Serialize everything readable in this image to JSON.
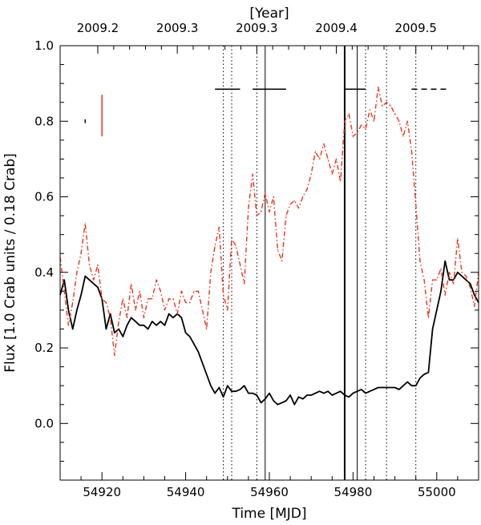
{
  "chart_data": {
    "type": "line",
    "xlabel": "Time [MJD]",
    "ylabel": "Flux [1.0 Crab units / 0.18 Crab]",
    "top_axis_title": "[Year]",
    "xlim": [
      54910,
      55010
    ],
    "ylim": [
      -0.15,
      1.0
    ],
    "x_ticks": [
      54920,
      54940,
      54960,
      54980,
      55000
    ],
    "x_tick_labels": [
      "54920",
      "54940",
      "54960",
      "54980",
      "55000"
    ],
    "y_ticks": [
      0.0,
      0.2,
      0.4,
      0.6,
      0.8,
      1.0
    ],
    "y_tick_labels": [
      "0.0",
      "0.2",
      "0.4",
      "0.6",
      "0.8",
      "1.0"
    ],
    "top_ticks": [
      {
        "x": 54919,
        "label": "2009.2"
      },
      {
        "x": 54938,
        "label": "2009.3"
      },
      {
        "x": 54957,
        "label": "2009.3"
      },
      {
        "x": 54976,
        "label": "2009.4"
      },
      {
        "x": 54995,
        "label": "2009.5"
      }
    ],
    "grid": false,
    "series": [
      {
        "color": "#000000",
        "style": "solid",
        "x": [
          54910,
          54911,
          54912,
          54913,
          54914,
          54915,
          54916,
          54917,
          54918,
          54919,
          54920,
          54921,
          54922,
          54923,
          54924,
          54925,
          54926,
          54927,
          54928,
          54929,
          54930,
          54931,
          54932,
          54933,
          54934,
          54935,
          54936,
          54937,
          54938,
          54939,
          54940,
          54941,
          54942,
          54943,
          54944,
          54945,
          54946,
          54947,
          54948,
          54949,
          54950,
          54951,
          54952,
          54953,
          54954,
          54955,
          54956,
          54957,
          54958,
          54959,
          54960,
          54961,
          54962,
          54963,
          54964,
          54965,
          54966,
          54967,
          54968,
          54969,
          54970,
          54971,
          54972,
          54973,
          54974,
          54975,
          54976,
          54977,
          54978,
          54979,
          54980,
          54981,
          54982,
          54983,
          54984,
          54985,
          54986,
          54987,
          54988,
          54989,
          54990,
          54991,
          54992,
          54993,
          54994,
          54995,
          54996,
          54997,
          54998,
          54999,
          55000,
          55001,
          55002,
          55003,
          55004,
          55005,
          55006,
          55007,
          55008,
          55009,
          55010
        ],
        "y": [
          0.34,
          0.38,
          0.3,
          0.25,
          0.3,
          0.34,
          0.39,
          0.38,
          0.37,
          0.36,
          0.33,
          0.25,
          0.29,
          0.24,
          0.25,
          0.23,
          0.26,
          0.28,
          0.27,
          0.26,
          0.26,
          0.25,
          0.27,
          0.26,
          0.27,
          0.26,
          0.29,
          0.28,
          0.29,
          0.28,
          0.24,
          0.23,
          0.21,
          0.19,
          0.16,
          0.13,
          0.1,
          0.08,
          0.095,
          0.07,
          0.1,
          0.085,
          0.085,
          0.09,
          0.1,
          0.08,
          0.08,
          0.075,
          0.055,
          0.065,
          0.08,
          0.06,
          0.05,
          0.055,
          0.06,
          0.075,
          0.05,
          0.07,
          0.065,
          0.075,
          0.075,
          0.08,
          0.085,
          0.08,
          0.085,
          0.075,
          0.08,
          0.085,
          0.075,
          0.07,
          0.08,
          0.085,
          0.09,
          0.08,
          0.085,
          0.09,
          0.095,
          0.095,
          0.095,
          0.095,
          0.095,
          0.09,
          0.1,
          0.11,
          0.1,
          0.1,
          0.12,
          0.13,
          0.135,
          0.25,
          0.3,
          0.35,
          0.43,
          0.38,
          0.38,
          0.4,
          0.39,
          0.38,
          0.37,
          0.34,
          0.32
        ]
      },
      {
        "color": "#e8351e",
        "style": "dashdot",
        "x": [
          54910,
          54911,
          54912,
          54913,
          54914,
          54915,
          54916,
          54917,
          54918,
          54919,
          54920,
          54921,
          54922,
          54923,
          54924,
          54925,
          54926,
          54927,
          54928,
          54929,
          54930,
          54931,
          54932,
          54933,
          54934,
          54935,
          54936,
          54937,
          54938,
          54939,
          54940,
          54941,
          54942,
          54943,
          54944,
          54945,
          54946,
          54947,
          54948,
          54949,
          54950,
          54951,
          54952,
          54953,
          54954,
          54955,
          54956,
          54957,
          54958,
          54959,
          54960,
          54961,
          54962,
          54963,
          54964,
          54965,
          54966,
          54967,
          54968,
          54969,
          54970,
          54971,
          54972,
          54973,
          54974,
          54975,
          54976,
          54977,
          54978,
          54979,
          54980,
          54981,
          54982,
          54983,
          54984,
          54985,
          54986,
          54987,
          54988,
          54989,
          54990,
          54991,
          54992,
          54993,
          54994,
          54995,
          54996,
          54997,
          54998,
          54999,
          55000,
          55001,
          55002,
          55003,
          55004,
          55005,
          55006,
          55007,
          55008,
          55009,
          55010
        ],
        "y": [
          0.44,
          0.35,
          0.26,
          0.32,
          0.4,
          0.45,
          0.53,
          0.42,
          0.38,
          0.42,
          0.33,
          0.32,
          0.28,
          0.18,
          0.27,
          0.33,
          0.28,
          0.37,
          0.3,
          0.35,
          0.28,
          0.33,
          0.33,
          0.38,
          0.35,
          0.3,
          0.33,
          0.33,
          0.29,
          0.35,
          0.32,
          0.32,
          0.35,
          0.35,
          0.3,
          0.25,
          0.4,
          0.47,
          0.52,
          0.34,
          0.3,
          0.49,
          0.47,
          0.42,
          0.37,
          0.57,
          0.66,
          0.55,
          0.56,
          0.61,
          0.56,
          0.6,
          0.46,
          0.43,
          0.55,
          0.58,
          0.59,
          0.57,
          0.6,
          0.62,
          0.66,
          0.72,
          0.7,
          0.74,
          0.7,
          0.66,
          0.7,
          0.64,
          0.8,
          0.82,
          0.76,
          0.77,
          0.79,
          0.78,
          0.83,
          0.8,
          0.89,
          0.84,
          0.85,
          0.84,
          0.82,
          0.8,
          0.76,
          0.8,
          0.72,
          0.58,
          0.43,
          0.38,
          0.28,
          0.38,
          0.38,
          0.41,
          0.34,
          0.4,
          0.37,
          0.49,
          0.4,
          0.39,
          0.36,
          0.31,
          0.4
        ]
      }
    ],
    "vlines": [
      {
        "x": 54949,
        "style": "dotted",
        "width": 1
      },
      {
        "x": 54951,
        "style": "dotted",
        "width": 1
      },
      {
        "x": 54957,
        "style": "dotted",
        "width": 1
      },
      {
        "x": 54959,
        "style": "solid",
        "width": 1
      },
      {
        "x": 54978,
        "style": "solid",
        "width": 2
      },
      {
        "x": 54981,
        "style": "solid",
        "width": 1
      },
      {
        "x": 54983,
        "style": "dotted",
        "width": 1
      },
      {
        "x": 54988,
        "style": "dotted",
        "width": 1
      },
      {
        "x": 54995,
        "style": "dotted",
        "width": 1
      }
    ],
    "hsegments": [
      {
        "x1": 54947,
        "x2": 54953,
        "y": 0.885,
        "style": "solid"
      },
      {
        "x1": 54956,
        "x2": 54964,
        "y": 0.885,
        "style": "solid"
      },
      {
        "x1": 54978,
        "x2": 54983,
        "y": 0.885,
        "style": "solid"
      },
      {
        "x1": 54994,
        "x2": 55003,
        "y": 0.885,
        "style": "dashed"
      }
    ],
    "error_bars": [
      {
        "x": 54916,
        "y_low": 0.795,
        "y_high": 0.805,
        "color": "#000000"
      },
      {
        "x": 54920,
        "y_low": 0.76,
        "y_high": 0.87,
        "color": "#e8351e"
      }
    ]
  }
}
